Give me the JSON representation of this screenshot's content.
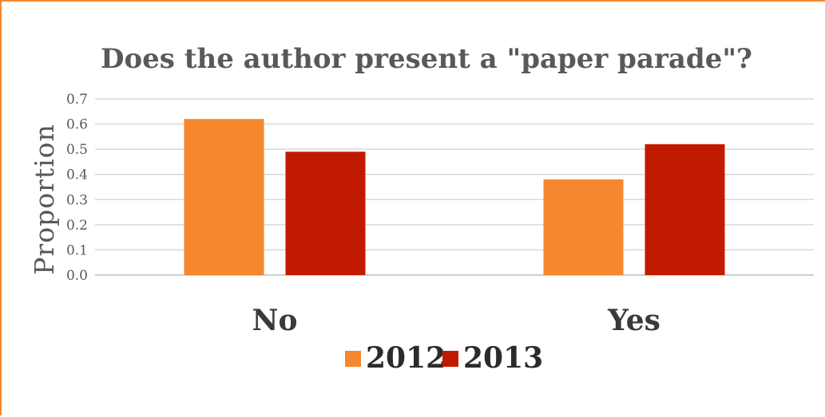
{
  "chart_data": {
    "type": "bar",
    "title": "Does the author present a \"paper parade\"?",
    "ylabel": "Proportion",
    "xlabel": "",
    "categories": [
      "No",
      "Yes"
    ],
    "series": [
      {
        "name": "2012",
        "values": [
          0.62,
          0.38
        ],
        "color": "#f5882f"
      },
      {
        "name": "2013",
        "values": [
          0.49,
          0.52
        ],
        "color": "#c21a00"
      }
    ],
    "ylim": [
      0,
      0.7
    ],
    "yticks": [
      "0.0",
      "0.1",
      "0.2",
      "0.3",
      "0.4",
      "0.5",
      "0.6",
      "0.7"
    ],
    "grid": true,
    "legend_position": "bottom"
  },
  "colors": {
    "frame_border": "#f5882f"
  }
}
